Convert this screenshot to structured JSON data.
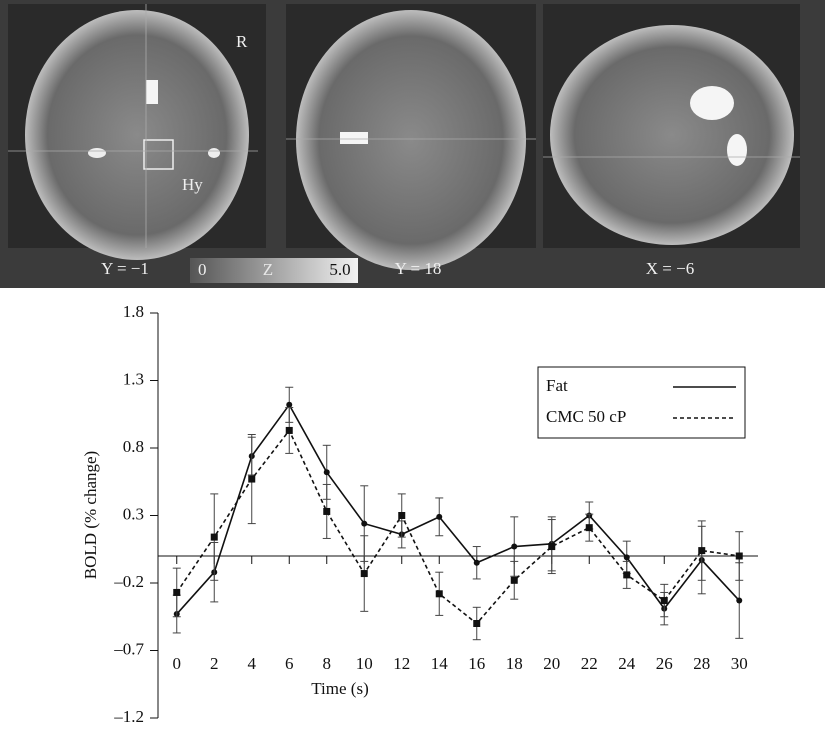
{
  "figure": {
    "panels": [
      {
        "label": "Y = −1",
        "marks": [
          "R",
          "Hy"
        ]
      },
      {
        "label": "Y = 18"
      },
      {
        "label": "X = −6"
      }
    ],
    "colorbar": {
      "min": "0",
      "name": "Z",
      "max": "5.0"
    }
  },
  "chart_data": {
    "type": "line",
    "x": [
      0,
      2,
      4,
      6,
      8,
      10,
      12,
      14,
      16,
      18,
      20,
      22,
      24,
      26,
      28,
      30
    ],
    "series": [
      {
        "name": "Fat",
        "color": "#111111",
        "dash": "solid",
        "marker": "circle",
        "values": [
          -0.43,
          -0.12,
          0.74,
          1.12,
          0.62,
          0.24,
          0.16,
          0.29,
          -0.05,
          0.07,
          0.09,
          0.3,
          -0.01,
          -0.39,
          -0.03,
          -0.33
        ],
        "errors": [
          0.14,
          0.22,
          0.14,
          0.13,
          0.2,
          0.28,
          0.1,
          0.14,
          0.12,
          0.22,
          0.2,
          0.1,
          0.12,
          0.12,
          0.25,
          0.28
        ]
      },
      {
        "name": "CMC 50 cP",
        "color": "#111111",
        "dash": "dashed",
        "marker": "square",
        "values": [
          -0.27,
          0.14,
          0.57,
          0.93,
          0.33,
          -0.13,
          0.3,
          -0.28,
          -0.5,
          -0.18,
          0.07,
          0.21,
          -0.14,
          -0.33,
          0.04,
          0.0
        ],
        "errors": [
          0.18,
          0.32,
          0.33,
          0.17,
          0.2,
          0.28,
          0.16,
          0.16,
          0.12,
          0.14,
          0.2,
          0.1,
          0.1,
          0.12,
          0.22,
          0.18
        ]
      }
    ],
    "xlabel": "Time (s)",
    "ylabel": "BOLD (% change)",
    "xlim": [
      -1,
      31
    ],
    "xticks": [
      0,
      2,
      4,
      6,
      8,
      10,
      12,
      14,
      16,
      18,
      20,
      22,
      24,
      26,
      28,
      30
    ],
    "ylim": [
      -1.2,
      1.8
    ],
    "yticks": [
      {
        "value": -1.2,
        "label": "–1.2"
      },
      {
        "value": -0.7,
        "label": "–0.7"
      },
      {
        "value": -0.2,
        "label": "–0.2"
      },
      0.3,
      0.8,
      1.3,
      1.8
    ],
    "legend": "upper right",
    "grid": false
  }
}
